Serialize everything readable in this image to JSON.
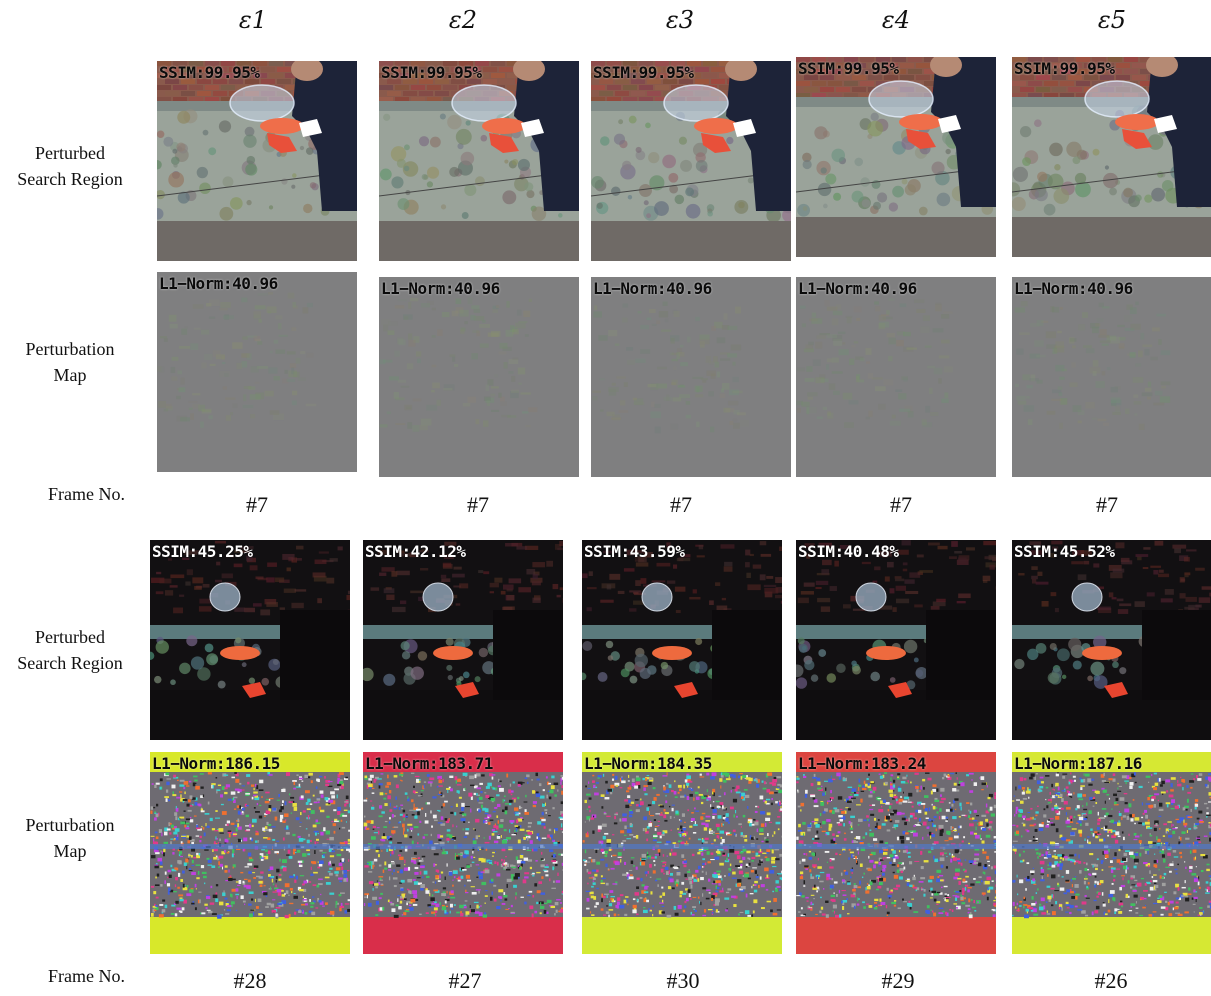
{
  "columns": [
    "ε1",
    "ε2",
    "ε3",
    "ε4",
    "ε5"
  ],
  "row_labels": {
    "perturbed_search_region": [
      "Perturbed",
      "Search Region"
    ],
    "perturbation_map": [
      "Perturbation",
      "Map"
    ],
    "frame_no": "Frame No."
  },
  "group1": {
    "ssim": [
      "SSIM:99.95%",
      "SSIM:99.95%",
      "SSIM:99.95%",
      "SSIM:99.95%",
      "SSIM:99.95%"
    ],
    "l1": [
      "L1−Norm:40.96",
      "L1−Norm:40.96",
      "L1−Norm:40.96",
      "L1−Norm:40.96",
      "L1−Norm:40.96"
    ],
    "frames": [
      "#7",
      "#7",
      "#7",
      "#7",
      "#7"
    ]
  },
  "group2": {
    "ssim": [
      "SSIM:45.25%",
      "SSIM:42.12%",
      "SSIM:43.59%",
      "SSIM:40.48%",
      "SSIM:45.52%"
    ],
    "l1": [
      "L1−Norm:186.15",
      "L1−Norm:183.71",
      "L1−Norm:184.35",
      "L1−Norm:183.24",
      "L1−Norm:187.16"
    ],
    "frames": [
      "#28",
      "#27",
      "#30",
      "#29",
      "#26"
    ],
    "map_pad_colors": [
      "#d8e82a",
      "#d92e4a",
      "#d3ea35",
      "#dc4540",
      "#d6e833"
    ]
  }
}
